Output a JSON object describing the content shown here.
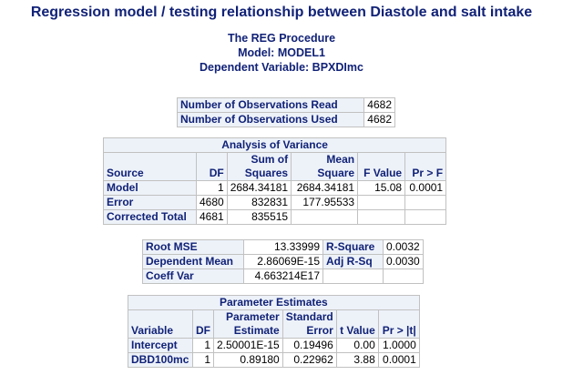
{
  "title": "Regression model / testing relationship between Diastole and salt intake",
  "procedure": {
    "name": "The REG Procedure",
    "model": "Model: MODEL1",
    "dependent": "Dependent Variable: BPXDImc"
  },
  "observations": {
    "rows": [
      {
        "label": "Number of Observations Read",
        "value": "4682"
      },
      {
        "label": "Number of Observations Used",
        "value": "4682"
      }
    ]
  },
  "anova": {
    "caption": "Analysis of Variance",
    "headers": {
      "source": "Source",
      "df": "DF",
      "ss_top": "Sum of",
      "ss_bottom": "Squares",
      "ms_top": "Mean",
      "ms_bottom": "Square",
      "f": "F Value",
      "p": "Pr > F"
    },
    "rows": [
      {
        "source": "Model",
        "df": "1",
        "ss": "2684.34181",
        "ms": "2684.34181",
        "f": "15.08",
        "p": "0.0001"
      },
      {
        "source": "Error",
        "df": "4680",
        "ss": "832831",
        "ms": "177.95533",
        "f": "",
        "p": ""
      },
      {
        "source": "Corrected Total",
        "df": "4681",
        "ss": "835515",
        "ms": "",
        "f": "",
        "p": ""
      }
    ]
  },
  "fit": {
    "rows": [
      {
        "label": "Root MSE",
        "value": "13.33999",
        "label2": "R-Square",
        "value2": "0.0032"
      },
      {
        "label": "Dependent Mean",
        "value": "2.86069E-15",
        "label2": "Adj R-Sq",
        "value2": "0.0030"
      },
      {
        "label": "Coeff Var",
        "value": "4.663214E17",
        "label2": "",
        "value2": ""
      }
    ]
  },
  "params": {
    "caption": "Parameter Estimates",
    "headers": {
      "variable": "Variable",
      "df": "DF",
      "est_top": "Parameter",
      "est_bottom": "Estimate",
      "se_top": "Standard",
      "se_bottom": "Error",
      "t": "t Value",
      "p": "Pr > |t|"
    },
    "rows": [
      {
        "variable": "Intercept",
        "df": "1",
        "est": "2.50001E-15",
        "se": "0.19496",
        "t": "0.00",
        "p": "1.0000"
      },
      {
        "variable": "DBD100mc",
        "df": "1",
        "est": "0.89180",
        "se": "0.22962",
        "t": "3.88",
        "p": "0.0001"
      }
    ]
  }
}
